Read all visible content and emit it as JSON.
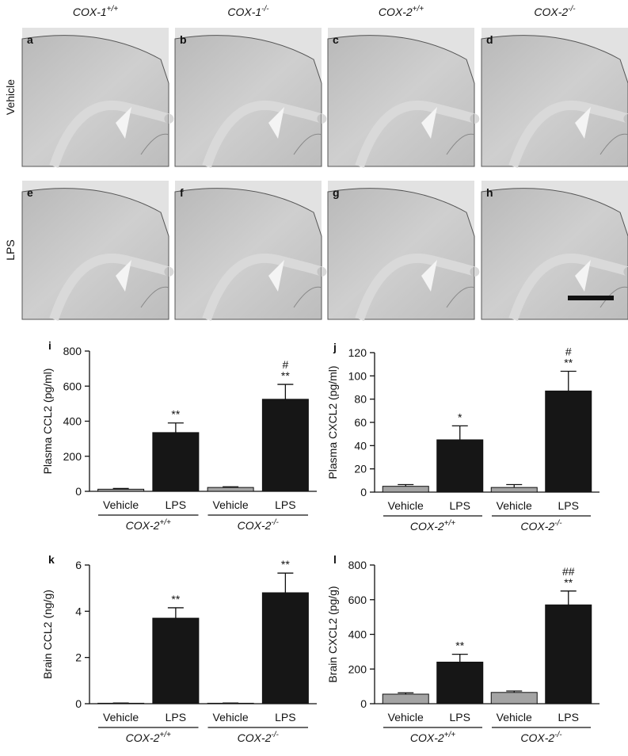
{
  "figure": {
    "columns": [
      {
        "name": "COX-1",
        "sup": "+/+"
      },
      {
        "name": "COX-1",
        "sup": "-/-"
      },
      {
        "name": "COX-2",
        "sup": "+/+"
      },
      {
        "name": "COX-2",
        "sup": "-/-"
      }
    ],
    "rows": [
      "Vehicle",
      "LPS"
    ],
    "panels": [
      "a",
      "b",
      "c",
      "d",
      "e",
      "f",
      "g",
      "h"
    ]
  },
  "chart_data": [
    {
      "type": "bar",
      "panel": "i",
      "ylabel": "Plasma CCL2 (pg/ml)",
      "categories": [
        "Vehicle",
        "LPS",
        "Vehicle",
        "LPS"
      ],
      "groups": [
        {
          "name": "COX-2",
          "sup": "+/+"
        },
        {
          "name": "COX-2",
          "sup": "-/-"
        }
      ],
      "values": [
        12,
        335,
        22,
        525
      ],
      "errors": [
        4,
        55,
        4,
        85
      ],
      "colors": [
        "#a4a4a4",
        "#161616",
        "#a4a4a4",
        "#161616"
      ],
      "annotations": [
        null,
        [
          "**"
        ],
        null,
        [
          "#",
          "**"
        ]
      ],
      "ylim": [
        0,
        800
      ],
      "yticks": [
        0,
        200,
        400,
        600,
        800
      ]
    },
    {
      "type": "bar",
      "panel": "j",
      "ylabel": "Plasma CXCL2 (pg/ml)",
      "categories": [
        "Vehicle",
        "LPS",
        "Vehicle",
        "LPS"
      ],
      "groups": [
        {
          "name": "COX-2",
          "sup": "+/+"
        },
        {
          "name": "COX-2",
          "sup": "-/-"
        }
      ],
      "values": [
        5,
        45,
        4,
        87
      ],
      "errors": [
        1.5,
        12,
        2.5,
        17
      ],
      "colors": [
        "#a4a4a4",
        "#161616",
        "#a4a4a4",
        "#161616"
      ],
      "annotations": [
        null,
        [
          "*"
        ],
        null,
        [
          "#",
          "**"
        ]
      ],
      "ylim": [
        0,
        120
      ],
      "yticks": [
        0,
        20,
        40,
        60,
        80,
        100,
        120
      ]
    },
    {
      "type": "bar",
      "panel": "k",
      "ylabel": "Brain CCL2 (ng/g)",
      "categories": [
        "Vehicle",
        "LPS",
        "Vehicle",
        "LPS"
      ],
      "groups": [
        {
          "name": "COX-2",
          "sup": "+/+"
        },
        {
          "name": "COX-2",
          "sup": "-/-"
        }
      ],
      "values": [
        0.02,
        3.7,
        0.02,
        4.8
      ],
      "errors": [
        0.01,
        0.45,
        0.01,
        0.85
      ],
      "colors": [
        "#a4a4a4",
        "#161616",
        "#a4a4a4",
        "#161616"
      ],
      "annotations": [
        null,
        [
          "**"
        ],
        null,
        [
          "**"
        ]
      ],
      "ylim": [
        0,
        6
      ],
      "yticks": [
        0,
        2,
        4,
        6
      ]
    },
    {
      "type": "bar",
      "panel": "l",
      "ylabel": "Brain CXCL2 (pg/g)",
      "categories": [
        "Vehicle",
        "LPS",
        "Vehicle",
        "LPS"
      ],
      "groups": [
        {
          "name": "COX-2",
          "sup": "+/+"
        },
        {
          "name": "COX-2",
          "sup": "-/-"
        }
      ],
      "values": [
        55,
        240,
        65,
        570
      ],
      "errors": [
        8,
        45,
        8,
        80
      ],
      "colors": [
        "#a4a4a4",
        "#161616",
        "#a4a4a4",
        "#161616"
      ],
      "annotations": [
        null,
        [
          "**"
        ],
        null,
        [
          "##",
          "**"
        ]
      ],
      "ylim": [
        0,
        800
      ],
      "yticks": [
        0,
        200,
        400,
        600,
        800
      ]
    }
  ]
}
